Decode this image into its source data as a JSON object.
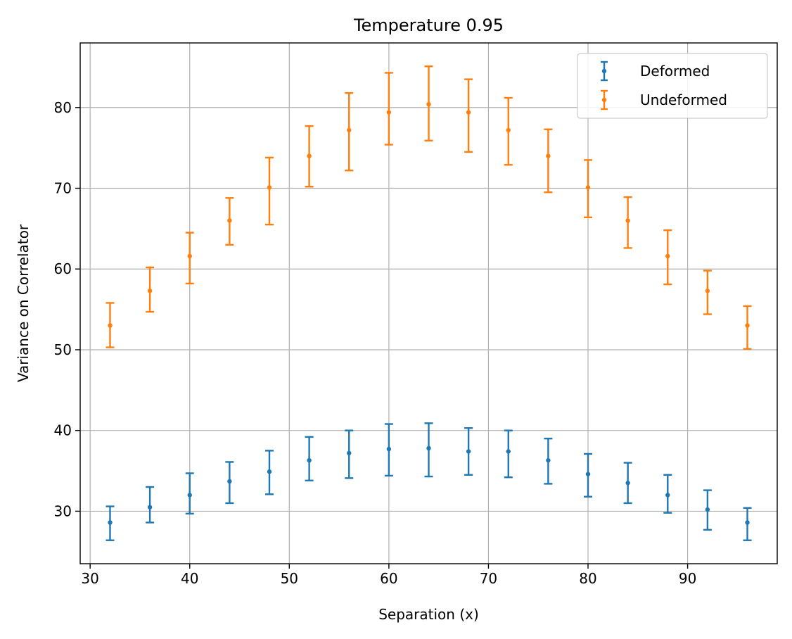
{
  "chart_data": {
    "type": "scatter",
    "title": "Temperature 0.95",
    "xlabel": "Separation (x)",
    "ylabel": "Variance on Correlator",
    "xlim": [
      29,
      99
    ],
    "ylim": [
      23.5,
      88
    ],
    "xticks": [
      30,
      40,
      50,
      60,
      70,
      80,
      90
    ],
    "yticks": [
      30,
      40,
      50,
      60,
      70,
      80
    ],
    "grid": true,
    "legend_position": "top-right",
    "x": [
      32,
      36,
      40,
      44,
      48,
      52,
      56,
      60,
      64,
      68,
      72,
      76,
      80,
      84,
      88,
      92,
      96
    ],
    "series": [
      {
        "name": "Deformed",
        "color": "#1f77b4",
        "values": [
          28.6,
          30.5,
          32.0,
          33.7,
          34.9,
          36.3,
          37.2,
          37.7,
          37.8,
          37.4,
          37.4,
          36.3,
          34.6,
          33.5,
          32.0,
          30.2,
          28.6
        ],
        "err_low": [
          26.4,
          28.6,
          29.7,
          31.0,
          32.1,
          33.8,
          34.1,
          34.4,
          34.3,
          34.5,
          34.2,
          33.4,
          31.8,
          31.0,
          29.8,
          27.7,
          26.4
        ],
        "err_high": [
          30.6,
          33.0,
          34.7,
          36.1,
          37.5,
          39.2,
          40.0,
          40.8,
          40.9,
          40.3,
          40.0,
          39.0,
          37.1,
          36.0,
          34.5,
          32.6,
          30.4
        ]
      },
      {
        "name": "Undeformed",
        "color": "#ff7f0e",
        "values": [
          53.0,
          57.3,
          61.6,
          66.0,
          70.1,
          74.0,
          77.2,
          79.4,
          80.4,
          79.4,
          77.2,
          74.0,
          70.1,
          66.0,
          61.6,
          57.3,
          53.0
        ],
        "err_low": [
          50.3,
          54.7,
          58.2,
          63.0,
          65.5,
          70.2,
          72.2,
          75.4,
          75.9,
          74.5,
          72.9,
          69.5,
          66.4,
          62.6,
          58.1,
          54.4,
          50.1
        ],
        "err_high": [
          55.8,
          60.2,
          64.5,
          68.8,
          73.8,
          77.7,
          81.8,
          84.3,
          85.1,
          83.5,
          81.2,
          77.3,
          73.5,
          68.9,
          64.8,
          59.8,
          55.4
        ]
      }
    ]
  }
}
